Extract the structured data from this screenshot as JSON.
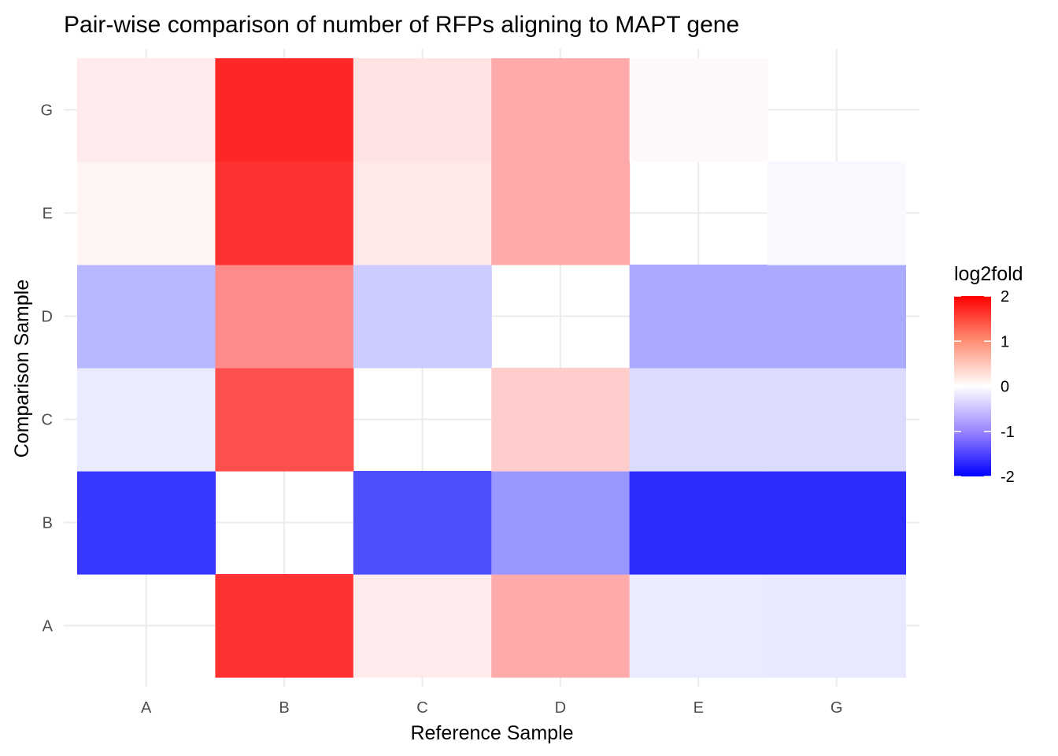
{
  "chart_data": {
    "type": "heatmap",
    "title": "Pair-wise comparison of number of RFPs aligning to MAPT gene",
    "xlabel": "Reference Sample",
    "ylabel": "Comparison Sample",
    "x_categories": [
      "A",
      "B",
      "C",
      "D",
      "E",
      "G"
    ],
    "y_categories": [
      "A",
      "B",
      "C",
      "D",
      "E",
      "G"
    ],
    "grid": true,
    "legend": {
      "title": "log2fold",
      "position": "right",
      "ticks": [
        2,
        1,
        0,
        -1,
        -2
      ],
      "tick_labels": [
        "2",
        "1",
        "0",
        "-1",
        "-2"
      ],
      "range": [
        -2,
        2
      ],
      "low_color": "#0000ff",
      "mid_color": "#ffffff",
      "high_color": "#ff0000"
    },
    "cells": [
      {
        "x": "B",
        "y": "A",
        "value": 1.55
      },
      {
        "x": "C",
        "y": "A",
        "value": 0.1
      },
      {
        "x": "D",
        "y": "A",
        "value": 0.55
      },
      {
        "x": "E",
        "y": "A",
        "value": -0.1
      },
      {
        "x": "G",
        "y": "A",
        "value": -0.12
      },
      {
        "x": "A",
        "y": "B",
        "value": -1.5
      },
      {
        "x": "C",
        "y": "B",
        "value": -1.3
      },
      {
        "x": "D",
        "y": "B",
        "value": -0.7
      },
      {
        "x": "E",
        "y": "B",
        "value": -1.6
      },
      {
        "x": "G",
        "y": "B",
        "value": -1.6
      },
      {
        "x": "A",
        "y": "C",
        "value": -0.1
      },
      {
        "x": "B",
        "y": "C",
        "value": 1.3
      },
      {
        "x": "D",
        "y": "C",
        "value": 0.3
      },
      {
        "x": "E",
        "y": "C",
        "value": -0.2
      },
      {
        "x": "G",
        "y": "C",
        "value": -0.2
      },
      {
        "x": "A",
        "y": "D",
        "value": -0.45
      },
      {
        "x": "B",
        "y": "D",
        "value": 0.8
      },
      {
        "x": "C",
        "y": "D",
        "value": -0.3
      },
      {
        "x": "E",
        "y": "D",
        "value": -0.55
      },
      {
        "x": "G",
        "y": "D",
        "value": -0.55
      },
      {
        "x": "A",
        "y": "E",
        "value": 0.05
      },
      {
        "x": "B",
        "y": "E",
        "value": 1.55
      },
      {
        "x": "C",
        "y": "E",
        "value": 0.12
      },
      {
        "x": "D",
        "y": "E",
        "value": 0.55
      },
      {
        "x": "G",
        "y": "E",
        "value": -0.03
      },
      {
        "x": "A",
        "y": "G",
        "value": 0.1
      },
      {
        "x": "B",
        "y": "G",
        "value": 1.65
      },
      {
        "x": "C",
        "y": "G",
        "value": 0.15
      },
      {
        "x": "D",
        "y": "G",
        "value": 0.55
      },
      {
        "x": "E",
        "y": "G",
        "value": 0.03
      }
    ]
  }
}
